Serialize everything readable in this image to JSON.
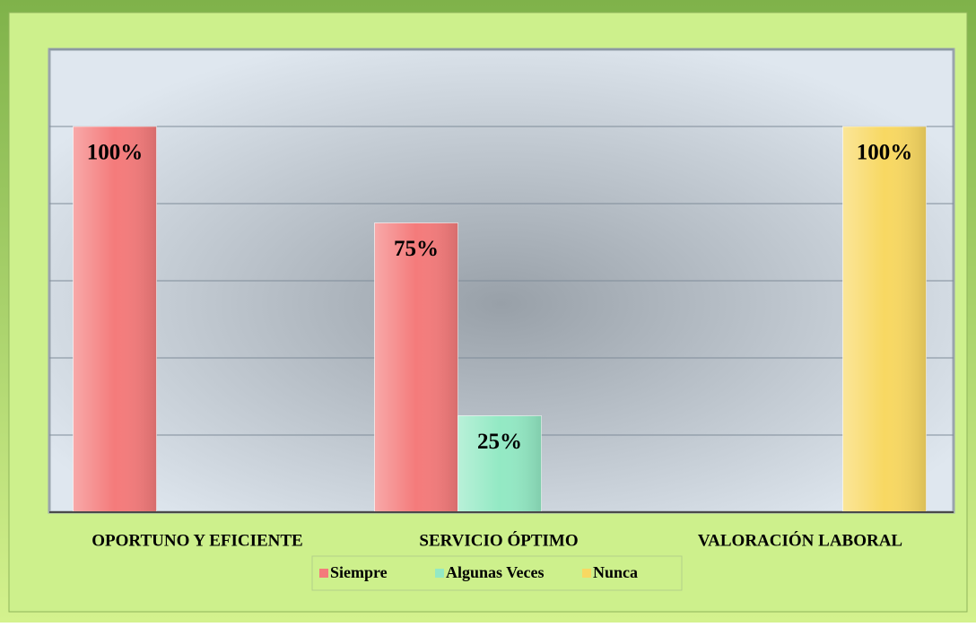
{
  "chart_data": {
    "type": "bar",
    "categories": [
      "OPORTUNO Y EFICIENTE",
      "SERVICIO ÓPTIMO",
      "VALORACIÓN LABORAL"
    ],
    "series": [
      {
        "name": "Siempre",
        "color": "#f47b7b",
        "values": [
          100,
          75,
          null
        ],
        "value_labels": [
          "100%",
          "75%",
          null
        ]
      },
      {
        "name": "Algunas Veces",
        "color": "#93e9c4",
        "values": [
          null,
          25,
          null
        ],
        "value_labels": [
          null,
          "25%",
          null
        ]
      },
      {
        "name": "Nunca",
        "color": "#f8d862",
        "values": [
          null,
          null,
          100
        ],
        "value_labels": [
          null,
          null,
          "100%"
        ]
      }
    ],
    "ylim": [
      0,
      120
    ],
    "yticks": [
      0,
      20,
      40,
      60,
      80,
      100,
      120
    ],
    "grid": true,
    "legend": "bottom"
  }
}
